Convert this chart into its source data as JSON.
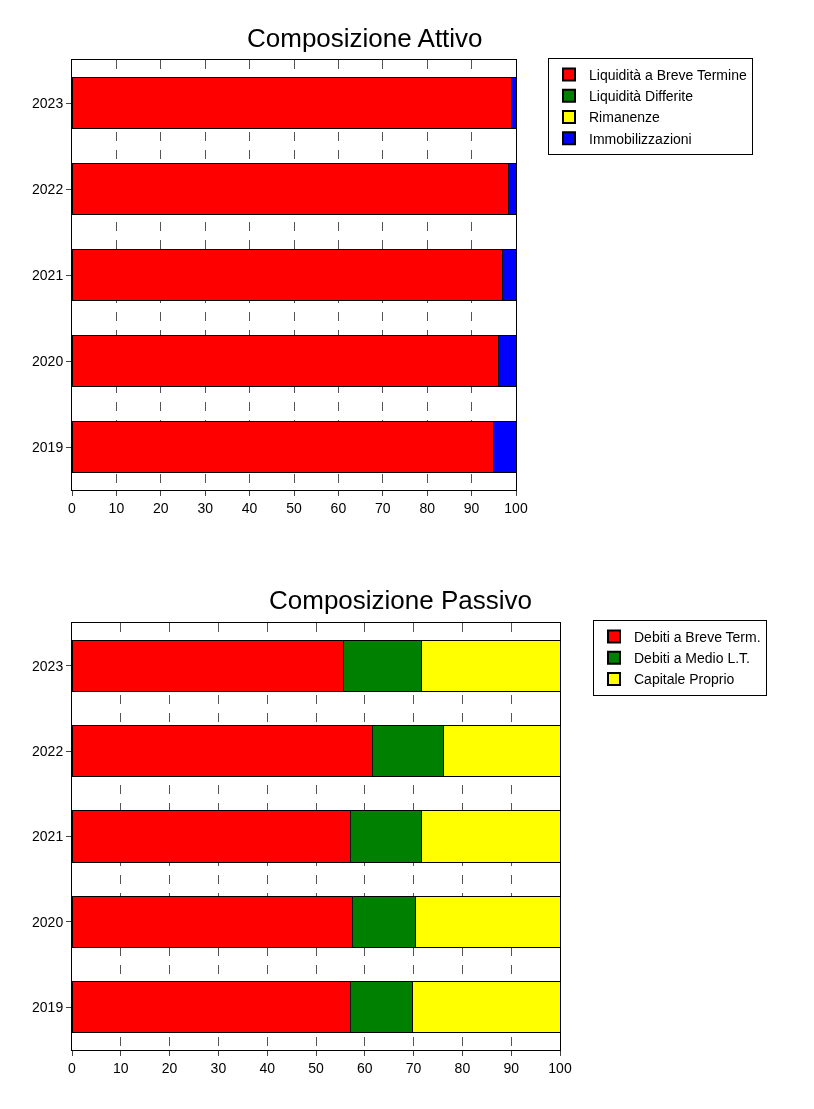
{
  "chart_data": [
    {
      "type": "bar",
      "title": "Composizione Attivo",
      "orientation": "horizontal",
      "stacked": true,
      "categories": [
        "2023",
        "2022",
        "2021",
        "2020",
        "2019"
      ],
      "series": [
        {
          "name": "Liquidità a Breve Termine",
          "color": "#ff0000",
          "values": [
            98.9,
            98.4,
            97.0,
            96.0,
            95.0
          ]
        },
        {
          "name": "Liquidità Differite",
          "color": "#008000",
          "values": [
            0,
            0,
            0,
            0,
            0
          ]
        },
        {
          "name": "Rimanenze",
          "color": "#ffff00",
          "values": [
            0,
            0,
            0,
            0,
            0
          ]
        },
        {
          "name": "Immobilizzazioni",
          "color": "#0000ff",
          "values": [
            1.1,
            1.6,
            3.0,
            4.0,
            5.0
          ]
        }
      ],
      "xlim": [
        0,
        100
      ],
      "xticks": [
        0,
        10,
        20,
        30,
        40,
        50,
        60,
        70,
        80,
        90,
        100
      ],
      "grid": "x",
      "legend": "top right"
    },
    {
      "type": "bar",
      "title": "Composizione Passivo",
      "orientation": "horizontal",
      "stacked": true,
      "categories": [
        "2023",
        "2022",
        "2021",
        "2020",
        "2019"
      ],
      "series": [
        {
          "name": "Debiti a Breve Term.",
          "color": "#ff0000",
          "values": [
            55.6,
            61.6,
            57.1,
            57.4,
            57.1
          ]
        },
        {
          "name": "Debiti a Medio L.T.",
          "color": "#008000",
          "values": [
            16.1,
            14.5,
            14.6,
            13.0,
            12.7
          ]
        },
        {
          "name": "Capitale Proprio",
          "color": "#ffff00",
          "values": [
            28.3,
            23.9,
            28.3,
            29.6,
            30.2
          ]
        }
      ],
      "xlim": [
        0,
        100
      ],
      "xticks": [
        0,
        10,
        20,
        30,
        40,
        50,
        60,
        70,
        80,
        90,
        100
      ],
      "grid": "x",
      "legend": "top right"
    }
  ]
}
